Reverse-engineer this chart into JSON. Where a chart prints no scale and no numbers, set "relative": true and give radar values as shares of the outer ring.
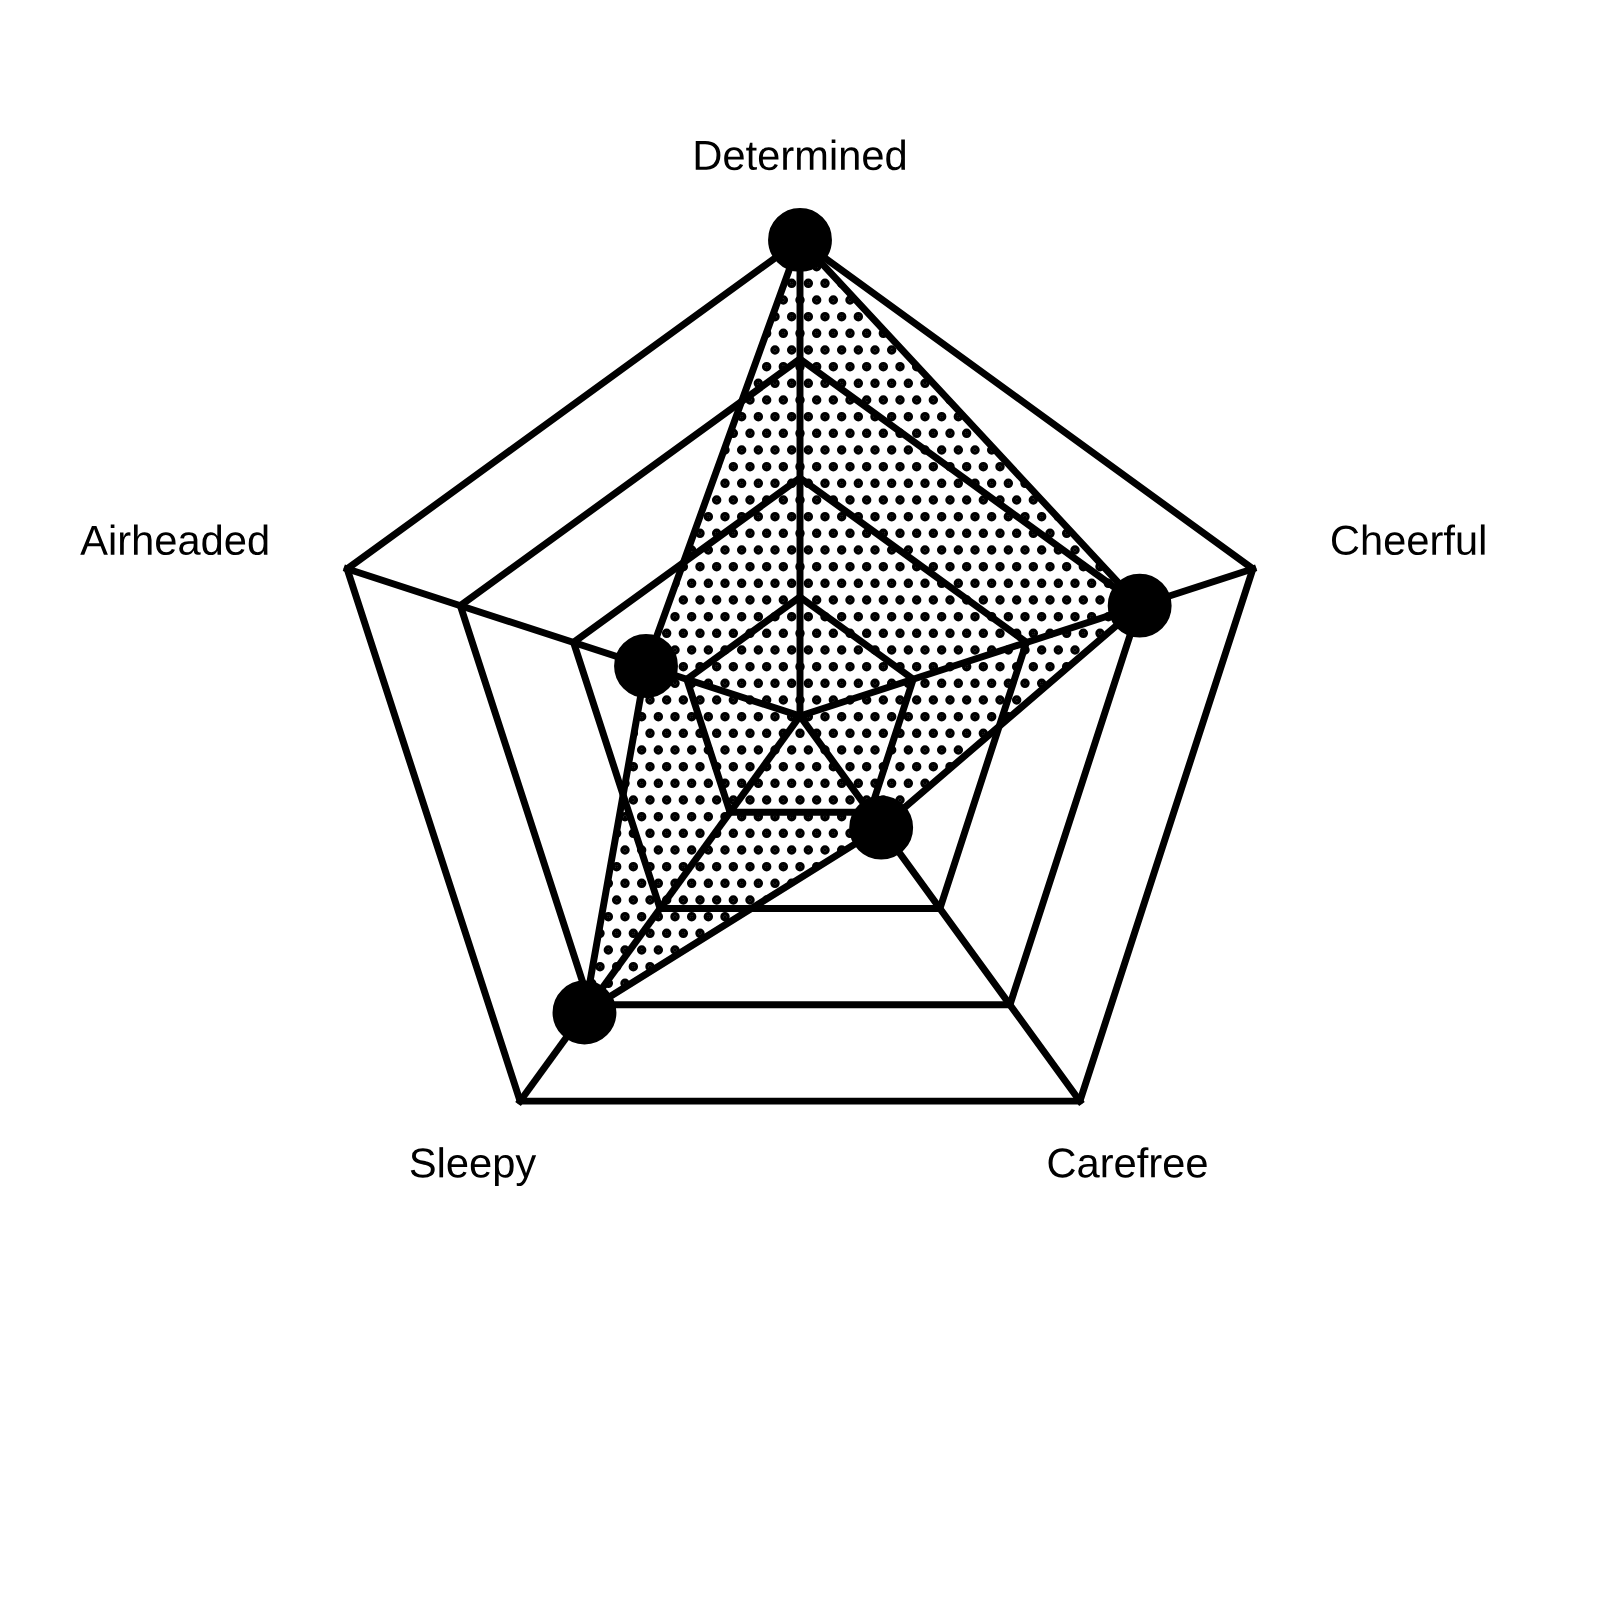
{
  "chart_data": {
    "type": "radar",
    "relative": true,
    "grid": true,
    "marker": "circle",
    "categories": [
      "Determined",
      "Cheerful",
      "Carefree",
      "Sleepy",
      "Airheaded"
    ],
    "series": [
      {
        "color": "#000000",
        "values": [
          1,
          0.75,
          0.29,
          0.77,
          0.34
        ]
      }
    ]
  }
}
